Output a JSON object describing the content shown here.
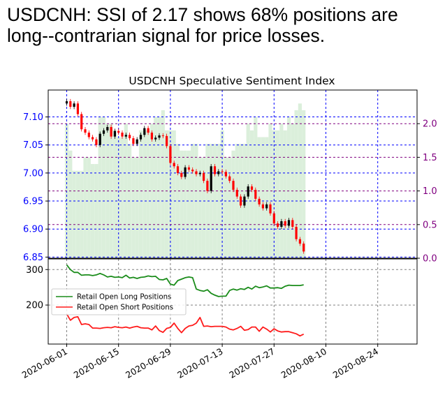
{
  "headline": {
    "line1": "USDCNH: SSI of 2.17 shows 68% positions are",
    "line2": "long--contrarian signal for price losses."
  },
  "colors": {
    "left_axis": "#0000ff",
    "right_axis": "#800080",
    "up_candle": "#000000",
    "down_candle": "#ff0000",
    "ssi_bar": "#c8e6c8",
    "long_line": "#1a8c1a",
    "short_line": "#ff1a1a",
    "grid_gray": "#808080"
  },
  "chart_data": [
    {
      "type": "candlestick",
      "title": "USDCNH Speculative Sentiment Index",
      "y_ticks": [
        "6.85",
        "6.90",
        "6.95",
        "7.00",
        "7.05",
        "7.10"
      ],
      "y2_ticks": [
        "0.0",
        "0.5",
        "1.0",
        "1.5",
        "2.0"
      ],
      "y_range": [
        6.848,
        7.148
      ],
      "y2_range": [
        0,
        2.5
      ],
      "start_date": "2020-06-01",
      "close": [
        7.128,
        7.118,
        7.124,
        7.105,
        7.078,
        7.072,
        7.064,
        7.06,
        7.05,
        7.07,
        7.076,
        7.082,
        7.065,
        7.075,
        7.072,
        7.065,
        7.068,
        7.062,
        7.052,
        7.06,
        7.068,
        7.08,
        7.072,
        7.06,
        7.063,
        7.067,
        7.066,
        7.048,
        7.018,
        7.012,
        7.0,
        6.993,
        7.01,
        7.006,
        7.003,
        6.998,
        7.0,
        6.986,
        6.968,
        7.012,
        6.998,
        7.003,
        7.002,
        6.994,
        6.986,
        6.97,
        6.958,
        6.942,
        6.958,
        6.976,
        6.97,
        6.954,
        6.944,
        6.937,
        6.944,
        6.928,
        6.91,
        6.904,
        6.914,
        6.906,
        6.916,
        6.904,
        6.882,
        6.874,
        6.86
      ],
      "ssi": [
        2.0,
        1.6,
        1.3,
        1.3,
        1.3,
        1.5,
        1.5,
        1.4,
        1.4,
        2.1,
        2.1,
        2.0,
        2.0,
        1.9,
        1.8,
        1.8,
        2.0,
        1.7,
        1.5,
        1.5,
        1.9,
        1.9,
        1.9,
        2.0,
        2.1,
        2.1,
        2.2,
        1.9,
        1.9,
        1.9,
        1.7,
        1.6,
        1.6,
        1.6,
        1.7,
        1.7,
        1.5,
        1.5,
        1.7,
        1.7,
        1.7,
        1.7,
        1.9,
        1.5,
        1.5,
        1.6,
        1.7,
        1.7,
        1.7,
        2.0,
        1.9,
        2.1,
        1.8,
        1.8,
        1.8,
        2.0,
        1.9,
        1.9,
        2.0,
        1.9,
        2.1,
        2.0,
        2.2,
        2.3,
        2.2
      ],
      "purple_lines": [
        2.0,
        1.5,
        1.0,
        0.5
      ]
    },
    {
      "type": "line",
      "y_ticks": [
        "200",
        "300"
      ],
      "y_range": [
        90,
        330
      ],
      "x_ticks": [
        "2020-06-01",
        "2020-06-15",
        "2020-06-29",
        "2020-07-13",
        "2020-07-27",
        "2020-08-10",
        "2020-08-24"
      ],
      "series": [
        {
          "name": "Retail Open Long Positions",
          "values": [
            313,
            300,
            292,
            292,
            284,
            285,
            285,
            283,
            285,
            289,
            285,
            279,
            281,
            278,
            279,
            277,
            284,
            276,
            278,
            275,
            278,
            279,
            282,
            280,
            281,
            272,
            271,
            275,
            259,
            256,
            269,
            273,
            277,
            279,
            277,
            245,
            241,
            239,
            243,
            233,
            228,
            224,
            225,
            225,
            241,
            245,
            242,
            246,
            244,
            250,
            245,
            253,
            249,
            251,
            254,
            248,
            248,
            249,
            247,
            253,
            256,
            255,
            255,
            255,
            257
          ]
        },
        {
          "name": "Retail Open Short Positions",
          "values": [
            175,
            157,
            165,
            167,
            145,
            147,
            145,
            135,
            135,
            134,
            136,
            137,
            136,
            139,
            137,
            136,
            138,
            135,
            138,
            140,
            136,
            135,
            135,
            130,
            141,
            128,
            123,
            134,
            137,
            149,
            134,
            122,
            134,
            141,
            143,
            149,
            165,
            140,
            141,
            139,
            140,
            140,
            140,
            138,
            132,
            130,
            134,
            140,
            129,
            131,
            138,
            138,
            126,
            138,
            132,
            124,
            133,
            127,
            124,
            125,
            125,
            122,
            119,
            113,
            118
          ]
        }
      ]
    }
  ]
}
